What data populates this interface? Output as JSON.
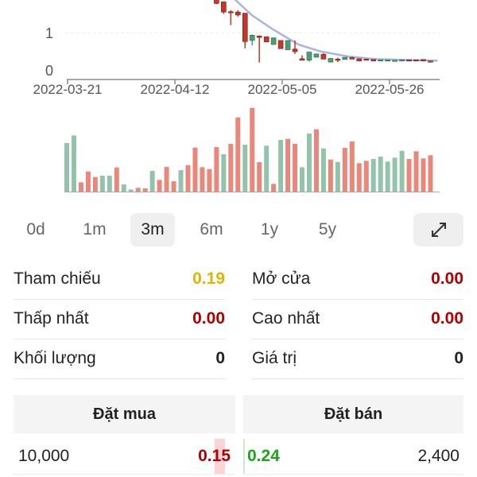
{
  "chart_data": {
    "type": "candlestick",
    "y_ticks": [
      "0",
      "1"
    ],
    "x_ticks": [
      "2022-03-21",
      "2022-04-12",
      "2022-05-05",
      "2022-05-26"
    ],
    "grid": "horizontal dashed",
    "colors": {
      "up": "#4f9b77",
      "down": "#c0392b",
      "ma": "#a9b3e6",
      "vol_up": "#93c4ab",
      "vol_down": "#e8877a"
    },
    "candles": [
      [
        22,
        1.95,
        1.98,
        1.76,
        1.78
      ],
      [
        23,
        1.82,
        1.84,
        1.5,
        1.55
      ],
      [
        24,
        1.56,
        1.6,
        1.2,
        1.54
      ],
      [
        25,
        1.55,
        1.6,
        1.43,
        1.47
      ],
      [
        26,
        1.52,
        1.52,
        0.58,
        0.76
      ],
      [
        27,
        0.79,
        0.95,
        0.66,
        0.93
      ],
      [
        28,
        0.91,
        0.92,
        0.2,
        0.87
      ],
      [
        29,
        0.89,
        0.89,
        0.75,
        0.75
      ],
      [
        30,
        0.68,
        0.86,
        0.68,
        0.86
      ],
      [
        31,
        0.79,
        0.79,
        0.57,
        0.57
      ],
      [
        32,
        0.54,
        0.79,
        0.54,
        0.79
      ],
      [
        33,
        0.56,
        0.79,
        0.43,
        0.49
      ],
      [
        34,
        0.3,
        0.39,
        0.26,
        0.26
      ],
      [
        35,
        0.26,
        0.48,
        0.22,
        0.48
      ],
      [
        36,
        0.34,
        0.43,
        0.33,
        0.43
      ],
      [
        37,
        0.42,
        0.45,
        0.29,
        0.29
      ],
      [
        38,
        0.21,
        0.31,
        0.21,
        0.31
      ],
      [
        39,
        0.29,
        0.33,
        0.21,
        0.26
      ],
      [
        40,
        0.28,
        0.34,
        0.28,
        0.34
      ],
      [
        41,
        0.33,
        0.36,
        0.29,
        0.29
      ],
      [
        42,
        0.3,
        0.31,
        0.24,
        0.24
      ],
      [
        43,
        0.29,
        0.29,
        0.26,
        0.26
      ],
      [
        44,
        0.28,
        0.28,
        0.24,
        0.24
      ],
      [
        45,
        0.24,
        0.27,
        0.24,
        0.27
      ],
      [
        46,
        0.25,
        0.27,
        0.25,
        0.27
      ],
      [
        47,
        0.25,
        0.26,
        0.25,
        0.26
      ],
      [
        48,
        0.25,
        0.27,
        0.25,
        0.27
      ],
      [
        49,
        0.27,
        0.27,
        0.26,
        0.26
      ],
      [
        50,
        0.27,
        0.27,
        0.25,
        0.25
      ],
      [
        51,
        0.28,
        0.28,
        0.24,
        0.24
      ],
      [
        52,
        0.24,
        0.24,
        0.21,
        0.21
      ]
    ],
    "ma": [
      [
        24.5,
        1.9
      ],
      [
        27,
        1.46
      ],
      [
        29.8,
        1.1
      ],
      [
        33.5,
        0.68
      ],
      [
        36.5,
        0.5
      ],
      [
        40.5,
        0.36
      ],
      [
        44.3,
        0.29
      ],
      [
        53,
        0.25
      ]
    ],
    "volume_relative": [
      183,
      212,
      35,
      76,
      55,
      60,
      60,
      91,
      27,
      8,
      14,
      12,
      78,
      44,
      93,
      39,
      81,
      100,
      166,
      92,
      85,
      168,
      141,
      180,
      280,
      177,
      316,
      111,
      173,
      29,
      195,
      199,
      180,
      92,
      219,
      235,
      163,
      121,
      112,
      165,
      189,
      107,
      116,
      123,
      132,
      113,
      128,
      154,
      123,
      152,
      125,
      137
    ],
    "volume_up": [
      1,
      1,
      0,
      0,
      0,
      1,
      1,
      0,
      1,
      1,
      0,
      0,
      1,
      0,
      0,
      0,
      1,
      0,
      0,
      0,
      0,
      0,
      1,
      0,
      0,
      1,
      0,
      0,
      1,
      0,
      1,
      0,
      0,
      1,
      1,
      0,
      1,
      0,
      1,
      0,
      0,
      0,
      0,
      1,
      1,
      1,
      1,
      1,
      0,
      0,
      0,
      0
    ]
  },
  "periods": [
    {
      "label": "0d"
    },
    {
      "label": "1m"
    },
    {
      "label": "3m",
      "selected": true
    },
    {
      "label": "6m"
    },
    {
      "label": "1y"
    },
    {
      "label": "5y"
    }
  ],
  "expand_icon": "expand-diagonal-arrows",
  "stats": {
    "ref_label": "Tham chiếu",
    "ref_value": "0.19",
    "open_label": "Mở cửa",
    "open_value": "0.00",
    "low_label": "Thấp nhất",
    "low_value": "0.00",
    "high_label": "Cao nhất",
    "high_value": "0.00",
    "vol_label": "Khối lượng",
    "vol_value": "0",
    "val_label": "Giá trị",
    "val_value": "0"
  },
  "colors": {
    "reference": "#e0b400",
    "down": "#b00000",
    "up": "#1aa51a"
  },
  "orderbook": {
    "bid_header": "Đặt mua",
    "ask_header": "Đặt bán",
    "rows": [
      {
        "bid_qty": "10,000",
        "bid_price": "0.15",
        "ask_price": "0.24",
        "ask_qty": "2,400"
      }
    ]
  }
}
